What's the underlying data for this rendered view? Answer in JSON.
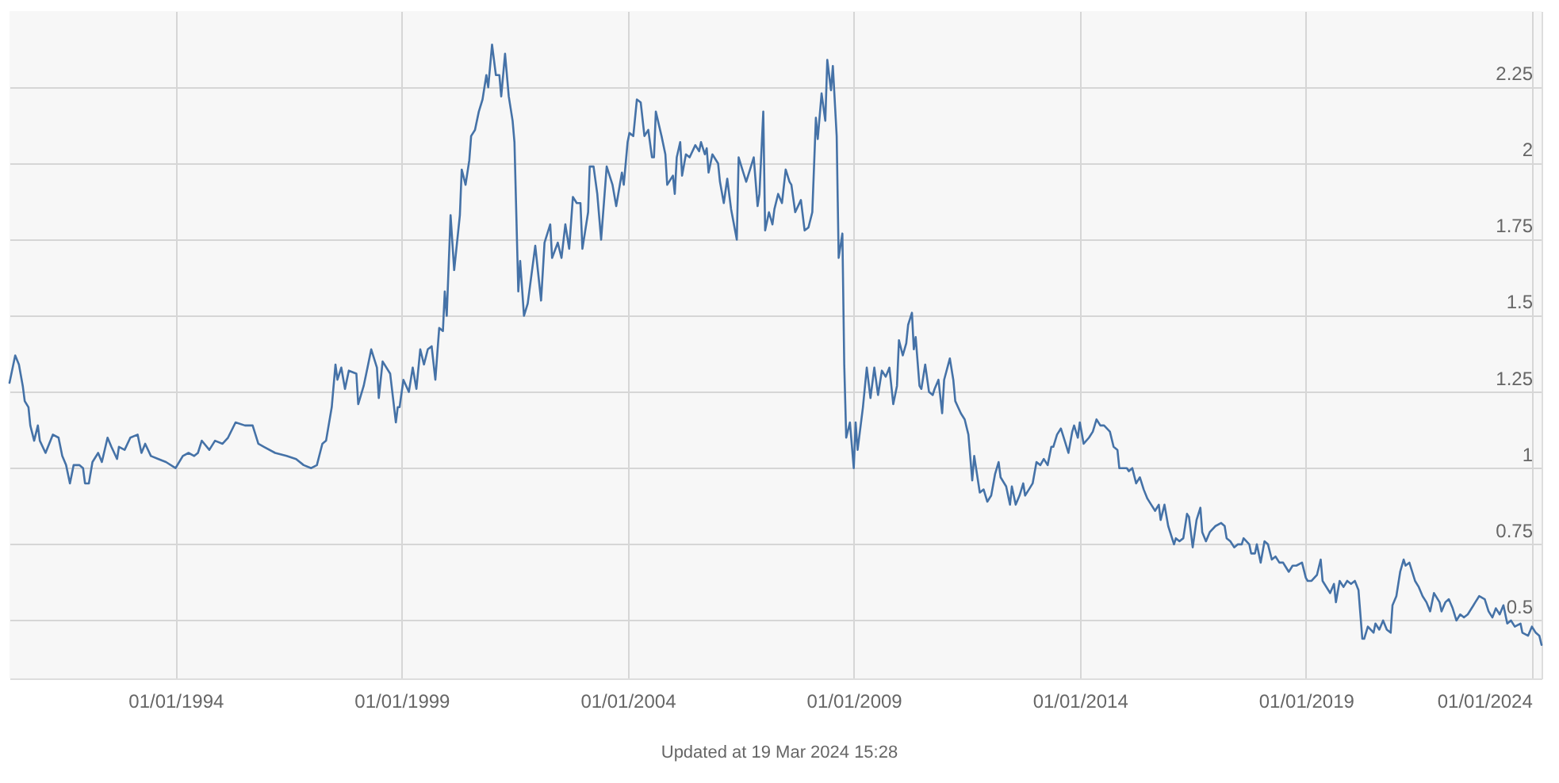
{
  "chart_data": {
    "type": "line",
    "color": "#4572a7",
    "x": [
      "1990-05-01",
      "1990-06-16",
      "1990-07-16",
      "1990-08-16",
      "1990-09-01",
      "1990-10-01",
      "1990-10-16",
      "1990-11-16",
      "1990-12-16",
      "1991-01-01",
      "1991-02-16",
      "1991-04-16",
      "1991-06-01",
      "1991-07-01",
      "1991-08-01",
      "1991-09-01",
      "1991-10-01",
      "1991-11-16",
      "1991-12-16",
      "1992-01-01",
      "1992-02-01",
      "1992-03-01",
      "1992-04-16",
      "1992-05-16",
      "1992-07-01",
      "1992-08-01",
      "1992-09-16",
      "1992-10-01",
      "1992-11-16",
      "1993-01-01",
      "1993-03-01",
      "1993-04-01",
      "1993-05-01",
      "1993-06-16",
      "1993-08-16",
      "1993-10-16",
      "1994-01-01",
      "1994-03-01",
      "1994-04-16",
      "1994-06-01",
      "1994-07-01",
      "1994-08-01",
      "1994-10-01",
      "1994-11-16",
      "1995-01-16",
      "1995-03-01",
      "1995-05-01",
      "1995-07-16",
      "1995-09-16",
      "1995-11-01",
      "1995-12-16",
      "1996-03-16",
      "1996-06-16",
      "1996-09-01",
      "1996-11-01",
      "1997-01-01",
      "1997-02-16",
      "1997-04-01",
      "1997-05-01",
      "1997-06-16",
      "1997-07-16",
      "1997-08-01",
      "1997-09-01",
      "1997-10-01",
      "1997-11-01",
      "1998-01-01",
      "1998-01-16",
      "1998-03-01",
      "1998-04-01",
      "1998-05-01",
      "1998-06-16",
      "1998-07-01",
      "1998-08-01",
      "1998-10-01",
      "1998-11-16",
      "1998-12-01",
      "1998-12-16",
      "1999-01-16",
      "1999-03-01",
      "1999-04-01",
      "1999-05-01",
      "1999-06-01",
      "1999-07-01",
      "1999-08-01",
      "1999-09-01",
      "1999-10-01",
      "1999-11-01",
      "1999-12-01",
      "1999-12-16",
      "2000-01-01",
      "2000-02-01",
      "2000-03-01",
      "2000-04-16",
      "2000-05-01",
      "2000-06-01",
      "2000-07-01",
      "2000-07-16",
      "2000-08-16",
      "2000-09-16",
      "2000-10-16",
      "2000-11-16",
      "2000-12-01",
      "2001-01-01",
      "2001-02-01",
      "2001-03-01",
      "2001-03-16",
      "2001-04-16",
      "2001-05-16",
      "2001-06-16",
      "2001-07-01",
      "2001-08-01",
      "2001-08-16",
      "2001-09-16",
      "2001-10-16",
      "2001-12-16",
      "2002-02-01",
      "2002-03-01",
      "2002-04-16",
      "2002-05-01",
      "2002-06-16",
      "2002-07-16",
      "2002-08-16",
      "2002-09-16",
      "2002-10-16",
      "2002-11-16",
      "2002-12-16",
      "2003-01-01",
      "2003-02-16",
      "2003-03-01",
      "2003-04-01",
      "2003-05-01",
      "2003-06-01",
      "2003-07-16",
      "2003-09-01",
      "2003-10-01",
      "2003-11-16",
      "2003-12-01",
      "2004-01-01",
      "2004-01-16",
      "2004-02-16",
      "2004-03-16",
      "2004-04-16",
      "2004-05-16",
      "2004-06-16",
      "2004-07-16",
      "2004-08-01",
      "2004-08-16",
      "2004-10-01",
      "2004-11-01",
      "2004-11-16",
      "2005-01-01",
      "2005-01-16",
      "2005-02-01",
      "2005-03-01",
      "2005-03-16",
      "2005-04-16",
      "2005-05-16",
      "2005-07-01",
      "2005-08-01",
      "2005-08-16",
      "2005-09-16",
      "2005-10-01",
      "2005-10-16",
      "2005-11-16",
      "2006-01-01",
      "2006-01-16",
      "2006-02-16",
      "2006-03-16",
      "2006-04-16",
      "2006-06-01",
      "2006-06-16",
      "2006-07-16",
      "2006-08-16",
      "2006-09-16",
      "2006-10-16",
      "2006-11-16",
      "2006-12-01",
      "2007-01-01",
      "2007-01-16",
      "2007-02-16",
      "2007-03-16",
      "2007-04-01",
      "2007-05-01",
      "2007-06-01",
      "2007-07-01",
      "2007-08-01",
      "2007-08-16",
      "2007-09-16",
      "2007-11-01",
      "2007-12-01",
      "2008-01-01",
      "2008-02-01",
      "2008-03-01",
      "2008-03-16",
      "2008-04-16",
      "2008-05-16",
      "2008-06-01",
      "2008-07-01",
      "2008-07-16",
      "2008-08-16",
      "2008-09-01",
      "2008-10-01",
      "2008-10-16",
      "2008-11-01",
      "2008-12-01",
      "2009-01-01",
      "2009-01-16",
      "2009-02-01",
      "2009-03-16",
      "2009-04-16",
      "2009-05-16",
      "2009-06-16",
      "2009-07-16",
      "2009-08-16",
      "2009-09-16",
      "2009-10-16",
      "2009-11-16",
      "2009-12-16",
      "2010-01-01",
      "2010-02-01",
      "2010-03-01",
      "2010-03-16",
      "2010-04-16",
      "2010-05-01",
      "2010-05-16",
      "2010-06-16",
      "2010-07-01",
      "2010-08-01",
      "2010-09-01",
      "2010-10-01",
      "2010-10-16",
      "2010-11-16",
      "2010-12-16",
      "2011-01-01",
      "2011-02-16",
      "2011-03-16",
      "2011-04-01",
      "2011-05-16",
      "2011-06-16",
      "2011-07-16",
      "2011-08-16",
      "2011-09-01",
      "2011-09-16",
      "2011-10-16",
      "2011-11-16",
      "2011-12-16",
      "2012-01-16",
      "2012-02-16",
      "2012-03-16",
      "2012-04-01",
      "2012-05-16",
      "2012-06-16",
      "2012-07-01",
      "2012-08-01",
      "2012-09-01",
      "2012-10-01",
      "2012-10-16",
      "2012-11-16",
      "2012-12-16",
      "2013-01-16",
      "2013-02-16",
      "2013-03-16",
      "2013-04-16",
      "2013-05-16",
      "2013-06-01",
      "2013-07-01",
      "2013-08-01",
      "2013-09-01",
      "2013-10-01",
      "2013-11-01",
      "2013-11-16",
      "2013-12-16",
      "2014-01-01",
      "2014-02-01",
      "2014-03-16",
      "2014-04-16",
      "2014-05-16",
      "2014-06-16",
      "2014-07-16",
      "2014-09-01",
      "2014-10-01",
      "2014-11-01",
      "2014-11-16",
      "2014-12-16",
      "2015-01-16",
      "2015-02-01",
      "2015-03-01",
      "2015-04-01",
      "2015-05-01",
      "2015-06-01",
      "2015-07-01",
      "2015-08-01",
      "2015-09-01",
      "2015-10-01",
      "2015-10-16",
      "2015-11-16",
      "2015-12-16",
      "2016-02-01",
      "2016-02-16",
      "2016-03-16",
      "2016-04-16",
      "2016-05-16",
      "2016-06-01",
      "2016-07-01",
      "2016-08-01",
      "2016-09-01",
      "2016-09-16",
      "2016-10-16",
      "2016-11-16",
      "2017-01-01",
      "2017-02-16",
      "2017-03-16",
      "2017-04-01",
      "2017-05-01",
      "2017-06-01",
      "2017-07-01",
      "2017-08-01",
      "2017-08-16",
      "2017-10-01",
      "2017-10-16",
      "2017-11-16",
      "2017-12-01",
      "2018-01-01",
      "2018-02-01",
      "2018-03-01",
      "2018-04-01",
      "2018-05-01",
      "2018-06-01",
      "2018-07-01",
      "2018-07-16",
      "2018-08-16",
      "2018-09-16",
      "2018-10-16",
      "2018-12-01",
      "2019-01-01",
      "2019-01-16",
      "2019-02-16",
      "2019-04-01",
      "2019-05-01",
      "2019-05-16",
      "2019-07-01",
      "2019-07-16",
      "2019-08-16",
      "2019-09-01",
      "2019-10-01",
      "2019-11-01",
      "2019-12-01",
      "2020-01-01",
      "2020-02-01",
      "2020-03-01",
      "2020-04-01",
      "2020-04-16",
      "2020-05-16",
      "2020-07-01",
      "2020-07-16",
      "2020-08-16",
      "2020-09-16",
      "2020-10-16",
      "2020-11-16",
      "2020-12-01",
      "2021-01-01",
      "2021-02-01",
      "2021-03-01",
      "2021-03-16",
      "2021-04-16",
      "2021-06-01",
      "2021-07-01",
      "2021-08-01",
      "2021-09-01",
      "2021-10-01",
      "2021-11-01",
      "2021-12-16",
      "2022-01-01",
      "2022-02-01",
      "2022-03-01",
      "2022-04-01",
      "2022-05-01",
      "2022-06-01",
      "2022-07-01",
      "2022-08-01",
      "2022-09-16",
      "2022-10-01",
      "2022-11-01",
      "2022-12-16",
      "2023-01-16",
      "2023-02-16",
      "2023-03-16",
      "2023-04-16",
      "2023-05-16",
      "2023-06-16",
      "2023-07-16",
      "2023-08-16",
      "2023-10-01",
      "2023-10-16",
      "2023-12-01",
      "2024-01-01",
      "2024-02-01",
      "2024-03-01",
      "2024-03-19"
    ],
    "values": [
      1.28,
      1.37,
      1.34,
      1.27,
      1.22,
      1.2,
      1.14,
      1.09,
      1.14,
      1.09,
      1.05,
      1.11,
      1.1,
      1.04,
      1.01,
      0.95,
      1.01,
      1.01,
      1.0,
      0.95,
      0.95,
      1.02,
      1.05,
      1.02,
      1.1,
      1.07,
      1.03,
      1.07,
      1.06,
      1.1,
      1.11,
      1.05,
      1.08,
      1.04,
      1.03,
      1.02,
      1.0,
      1.04,
      1.05,
      1.04,
      1.05,
      1.09,
      1.06,
      1.09,
      1.08,
      1.1,
      1.15,
      1.14,
      1.14,
      1.08,
      1.07,
      1.05,
      1.04,
      1.03,
      1.01,
      1.0,
      1.01,
      1.08,
      1.09,
      1.2,
      1.34,
      1.29,
      1.33,
      1.26,
      1.32,
      1.31,
      1.21,
      1.27,
      1.33,
      1.39,
      1.33,
      1.23,
      1.35,
      1.31,
      1.15,
      1.2,
      1.2,
      1.29,
      1.25,
      1.33,
      1.26,
      1.39,
      1.34,
      1.39,
      1.4,
      1.29,
      1.46,
      1.45,
      1.58,
      1.5,
      1.83,
      1.65,
      1.83,
      1.98,
      1.93,
      2.01,
      2.09,
      2.11,
      2.17,
      2.21,
      2.29,
      2.25,
      2.39,
      2.29,
      2.29,
      2.22,
      2.36,
      2.22,
      2.14,
      2.07,
      1.58,
      1.68,
      1.5,
      1.54,
      1.73,
      1.55,
      1.74,
      1.8,
      1.69,
      1.74,
      1.69,
      1.8,
      1.72,
      1.89,
      1.87,
      1.87,
      1.72,
      1.84,
      1.99,
      1.99,
      1.9,
      1.75,
      1.99,
      1.93,
      1.86,
      1.97,
      1.93,
      2.07,
      2.1,
      2.09,
      2.21,
      2.2,
      2.09,
      2.11,
      2.02,
      2.02,
      2.17,
      2.09,
      2.03,
      1.93,
      1.96,
      1.9,
      2.02,
      2.07,
      1.96,
      2.03,
      2.02,
      2.06,
      2.04,
      2.07,
      2.03,
      2.05,
      1.97,
      2.03,
      2.0,
      1.94,
      1.87,
      1.95,
      1.85,
      1.75,
      2.02,
      1.98,
      1.94,
      1.98,
      2.02,
      1.86,
      1.9,
      2.17,
      1.78,
      1.84,
      1.8,
      1.85,
      1.9,
      1.87,
      1.98,
      1.94,
      1.93,
      1.84,
      1.88,
      1.78,
      1.79,
      1.84,
      2.15,
      2.08,
      2.23,
      2.14,
      2.34,
      2.24,
      2.32,
      2.09,
      1.69,
      1.77,
      1.34,
      1.1,
      1.15,
      1.0,
      1.15,
      1.06,
      1.2,
      1.33,
      1.23,
      1.33,
      1.24,
      1.32,
      1.3,
      1.33,
      1.21,
      1.27,
      1.42,
      1.37,
      1.41,
      1.47,
      1.51,
      1.39,
      1.43,
      1.27,
      1.26,
      1.34,
      1.25,
      1.24,
      1.26,
      1.29,
      1.18,
      1.29,
      1.36,
      1.29,
      1.22,
      1.18,
      1.16,
      1.11,
      0.96,
      1.04,
      1.0,
      0.92,
      0.93,
      0.89,
      0.91,
      0.98,
      1.02,
      0.97,
      0.94,
      0.88,
      0.94,
      0.88,
      0.91,
      0.95,
      0.91,
      0.93,
      0.95,
      1.02,
      1.01,
      1.03,
      1.01,
      1.07,
      1.07,
      1.11,
      1.13,
      1.09,
      1.05,
      1.12,
      1.14,
      1.1,
      1.15,
      1.08,
      1.1,
      1.12,
      1.16,
      1.14,
      1.14,
      1.12,
      1.07,
      1.06,
      1.0,
      1.0,
      1.0,
      0.99,
      1.0,
      0.95,
      0.97,
      0.93,
      0.9,
      0.88,
      0.86,
      0.88,
      0.83,
      0.88,
      0.81,
      0.75,
      0.77,
      0.76,
      0.77,
      0.85,
      0.84,
      0.74,
      0.83,
      0.87,
      0.79,
      0.76,
      0.79,
      0.81,
      0.82,
      0.81,
      0.77,
      0.76,
      0.74,
      0.75,
      0.75,
      0.77,
      0.75,
      0.72,
      0.72,
      0.75,
      0.69,
      0.76,
      0.75,
      0.7,
      0.71,
      0.69,
      0.69,
      0.68,
      0.66,
      0.68,
      0.68,
      0.69,
      0.64,
      0.63,
      0.63,
      0.65,
      0.7,
      0.63,
      0.6,
      0.59,
      0.62,
      0.56,
      0.63,
      0.61,
      0.63,
      0.62,
      0.63,
      0.6,
      0.44,
      0.44,
      0.48,
      0.46,
      0.49,
      0.47,
      0.5,
      0.47,
      0.46,
      0.55,
      0.58,
      0.66,
      0.7,
      0.68,
      0.69,
      0.63,
      0.61,
      0.58,
      0.56,
      0.53,
      0.59,
      0.56,
      0.53,
      0.56,
      0.57,
      0.54,
      0.5,
      0.52,
      0.51,
      0.52,
      0.55,
      0.56,
      0.58,
      0.57,
      0.53,
      0.51,
      0.54,
      0.52,
      0.55,
      0.49,
      0.5,
      0.48,
      0.49,
      0.46,
      0.45,
      0.48,
      0.46,
      0.45,
      0.42
    ],
    "xlim": [
      "1990-05-01",
      "2024-03-19"
    ],
    "xticks": [
      {
        "value": "1994-01-01",
        "label": "01/01/1994"
      },
      {
        "value": "1999-01-01",
        "label": "01/01/1999"
      },
      {
        "value": "2004-01-01",
        "label": "01/01/2004"
      },
      {
        "value": "2009-01-01",
        "label": "01/01/2009"
      },
      {
        "value": "2014-01-01",
        "label": "01/01/2014"
      },
      {
        "value": "2019-01-01",
        "label": "01/01/2019"
      },
      {
        "value": "2024-01-01",
        "label": "01/01/2024"
      }
    ],
    "ylim": [
      0.31,
      2.5
    ],
    "yticks": [
      0.5,
      0.75,
      1,
      1.25,
      1.5,
      1.75,
      2,
      2.25
    ],
    "grid": true,
    "annotations": [
      "Updated at 19 Mar 2024 15:28"
    ]
  }
}
